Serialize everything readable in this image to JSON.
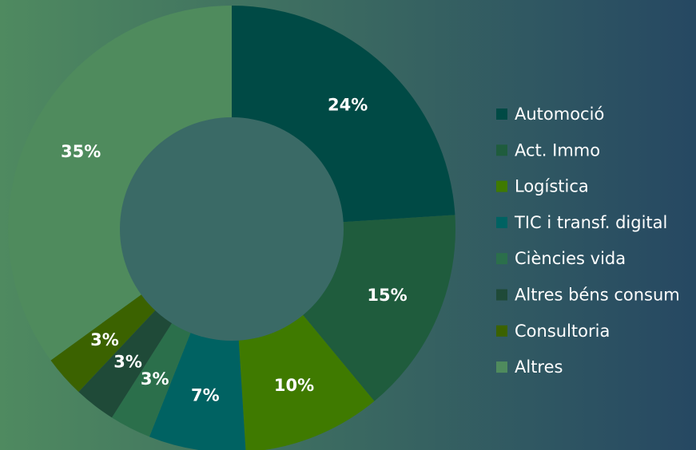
{
  "chart_data": {
    "type": "donut",
    "categories": [
      "Automoció",
      "Act. Immo",
      "Logística",
      "TIC i transf. digital",
      "Ciències vida",
      "Altres béns consum",
      "Consultoria",
      "Altres"
    ],
    "values": [
      24,
      15,
      10,
      7,
      3,
      3,
      3,
      35
    ],
    "value_labels": [
      "24%",
      "15%",
      "10%",
      "7%",
      "3%",
      "3%",
      "3%",
      "35%"
    ],
    "colors": [
      "#004a45",
      "#1f5c3d",
      "#3f7a00",
      "#006262",
      "#2b6f4b",
      "#1f4a38",
      "#3b6200",
      "#4f8b5d"
    ]
  }
}
